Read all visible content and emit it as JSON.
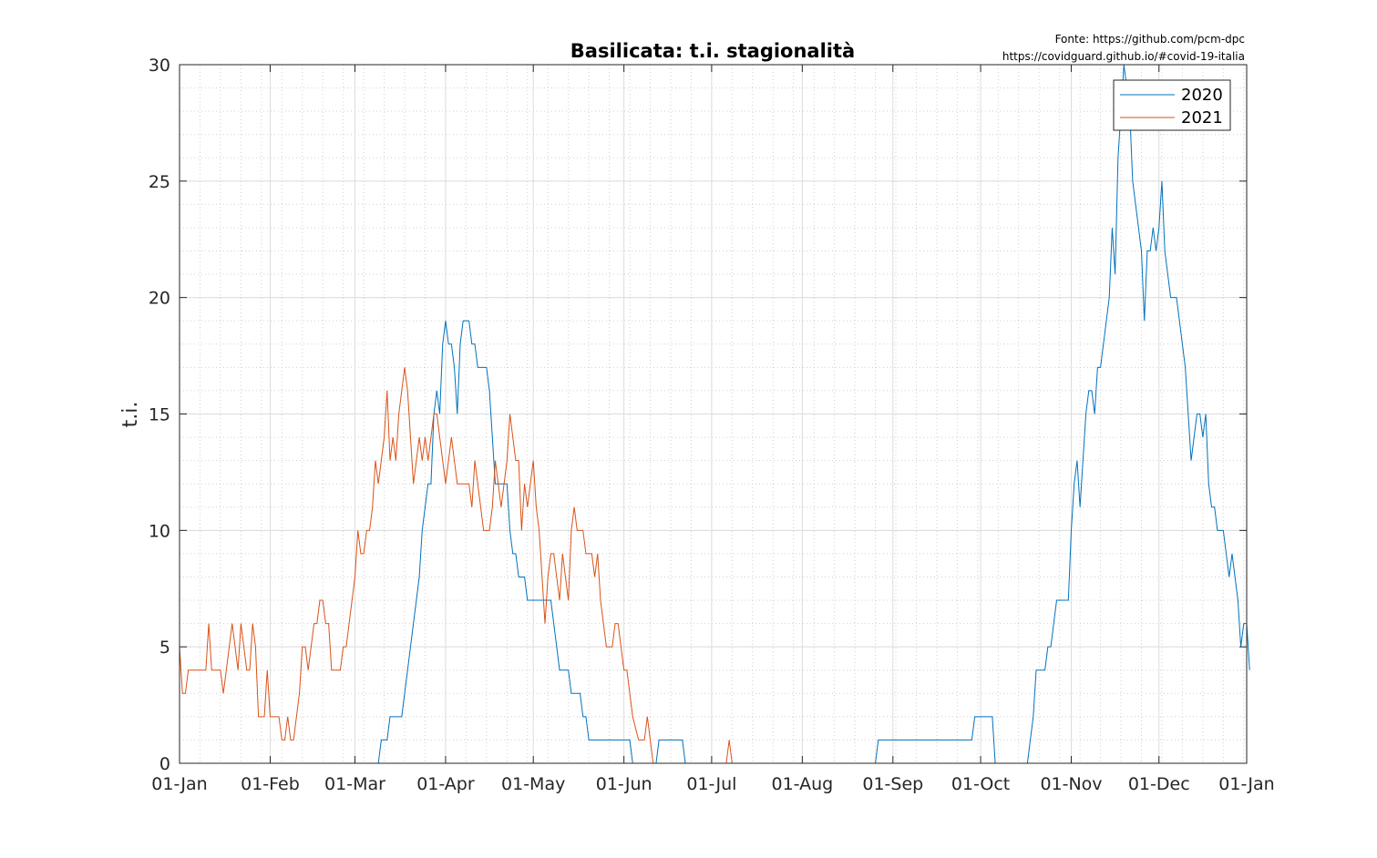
{
  "source": {
    "line1": "Fonte: https://github.com/pcm-dpc",
    "line2": "https://covidguard.github.io/#covid-19-italia"
  },
  "chart_data": {
    "type": "line",
    "title": "Basilicata: t.i. stagionalità",
    "xlabel": "",
    "ylabel": "t.i.",
    "x_axis": "day of year",
    "xlim": [
      1,
      366
    ],
    "ylim": [
      0,
      30
    ],
    "yticks": [
      0,
      5,
      10,
      15,
      20,
      25,
      30
    ],
    "xticks": [
      {
        "day": 1,
        "label": "01-Jan"
      },
      {
        "day": 32,
        "label": "01-Feb"
      },
      {
        "day": 61,
        "label": "01-Mar"
      },
      {
        "day": 92,
        "label": "01-Apr"
      },
      {
        "day": 122,
        "label": "01-May"
      },
      {
        "day": 153,
        "label": "01-Jun"
      },
      {
        "day": 183,
        "label": "01-Jul"
      },
      {
        "day": 214,
        "label": "01-Aug"
      },
      {
        "day": 245,
        "label": "01-Sep"
      },
      {
        "day": 275,
        "label": "01-Oct"
      },
      {
        "day": 306,
        "label": "01-Nov"
      },
      {
        "day": 336,
        "label": "01-Dec"
      },
      {
        "day": 367,
        "label": "01-Jan"
      }
    ],
    "grid": true,
    "minor_grid": true,
    "legend_position": "top-right",
    "series": [
      {
        "name": "2020",
        "color": "#0072bd",
        "points": [
          [
            55,
            0
          ],
          [
            69,
            0
          ],
          [
            70,
            1
          ],
          [
            72,
            1
          ],
          [
            73,
            2
          ],
          [
            77,
            2
          ],
          [
            78,
            3
          ],
          [
            80,
            5
          ],
          [
            81,
            6
          ],
          [
            83,
            8
          ],
          [
            84,
            10
          ],
          [
            85,
            11
          ],
          [
            86,
            12
          ],
          [
            87,
            12
          ],
          [
            88,
            15
          ],
          [
            89,
            16
          ],
          [
            90,
            15
          ],
          [
            91,
            18
          ],
          [
            92,
            19
          ],
          [
            93,
            18
          ],
          [
            94,
            18
          ],
          [
            95,
            17
          ],
          [
            96,
            15
          ],
          [
            97,
            18
          ],
          [
            98,
            19
          ],
          [
            100,
            19
          ],
          [
            101,
            18
          ],
          [
            102,
            18
          ],
          [
            103,
            17
          ],
          [
            106,
            17
          ],
          [
            107,
            16
          ],
          [
            108,
            14
          ],
          [
            109,
            12
          ],
          [
            113,
            12
          ],
          [
            114,
            10
          ],
          [
            115,
            9
          ],
          [
            116,
            9
          ],
          [
            117,
            8
          ],
          [
            119,
            8
          ],
          [
            120,
            7
          ],
          [
            128,
            7
          ],
          [
            129,
            6
          ],
          [
            130,
            5
          ],
          [
            131,
            4
          ],
          [
            134,
            4
          ],
          [
            135,
            3
          ],
          [
            138,
            3
          ],
          [
            139,
            2
          ],
          [
            140,
            2
          ],
          [
            141,
            1
          ],
          [
            155,
            1
          ],
          [
            156,
            0
          ],
          [
            164,
            0
          ],
          [
            165,
            1
          ],
          [
            173,
            1
          ],
          [
            174,
            0
          ],
          [
            239,
            0
          ],
          [
            240,
            1
          ],
          [
            272,
            1
          ],
          [
            273,
            2
          ],
          [
            279,
            2
          ],
          [
            280,
            0
          ],
          [
            291,
            0
          ],
          [
            292,
            1
          ],
          [
            293,
            2
          ],
          [
            294,
            4
          ],
          [
            297,
            4
          ],
          [
            298,
            5
          ],
          [
            299,
            5
          ],
          [
            300,
            6
          ],
          [
            301,
            7
          ],
          [
            305,
            7
          ],
          [
            306,
            10
          ],
          [
            307,
            12
          ],
          [
            308,
            13
          ],
          [
            309,
            11
          ],
          [
            310,
            13
          ],
          [
            311,
            15
          ],
          [
            312,
            16
          ],
          [
            313,
            16
          ],
          [
            314,
            15
          ],
          [
            315,
            17
          ],
          [
            316,
            17
          ],
          [
            317,
            18
          ],
          [
            318,
            19
          ],
          [
            319,
            20
          ],
          [
            320,
            23
          ],
          [
            321,
            21
          ],
          [
            322,
            26
          ],
          [
            323,
            28
          ],
          [
            324,
            30
          ],
          [
            325,
            29
          ],
          [
            326,
            28
          ],
          [
            327,
            25
          ],
          [
            328,
            24
          ],
          [
            329,
            23
          ],
          [
            330,
            22
          ],
          [
            331,
            19
          ],
          [
            332,
            22
          ],
          [
            333,
            22
          ],
          [
            334,
            23
          ],
          [
            335,
            22
          ],
          [
            336,
            23
          ],
          [
            337,
            25
          ],
          [
            338,
            22
          ],
          [
            339,
            21
          ],
          [
            340,
            20
          ],
          [
            342,
            20
          ],
          [
            343,
            19
          ],
          [
            344,
            18
          ],
          [
            345,
            17
          ],
          [
            346,
            15
          ],
          [
            347,
            13
          ],
          [
            348,
            14
          ],
          [
            349,
            15
          ],
          [
            350,
            15
          ],
          [
            351,
            14
          ],
          [
            352,
            15
          ],
          [
            353,
            12
          ],
          [
            354,
            11
          ],
          [
            355,
            11
          ],
          [
            356,
            10
          ],
          [
            358,
            10
          ],
          [
            359,
            9
          ],
          [
            360,
            8
          ],
          [
            361,
            9
          ],
          [
            362,
            8
          ],
          [
            363,
            7
          ],
          [
            364,
            5
          ],
          [
            365,
            6
          ],
          [
            366,
            6
          ],
          [
            367,
            4
          ]
        ]
      },
      {
        "name": "2021",
        "color": "#d95319",
        "points": [
          [
            1,
            5
          ],
          [
            2,
            3
          ],
          [
            3,
            3
          ],
          [
            4,
            4
          ],
          [
            10,
            4
          ],
          [
            11,
            6
          ],
          [
            12,
            4
          ],
          [
            15,
            4
          ],
          [
            16,
            3
          ],
          [
            17,
            4
          ],
          [
            18,
            5
          ],
          [
            19,
            6
          ],
          [
            20,
            5
          ],
          [
            21,
            4
          ],
          [
            22,
            6
          ],
          [
            23,
            5
          ],
          [
            24,
            4
          ],
          [
            25,
            4
          ],
          [
            26,
            6
          ],
          [
            27,
            5
          ],
          [
            28,
            2
          ],
          [
            30,
            2
          ],
          [
            31,
            4
          ],
          [
            32,
            2
          ],
          [
            35,
            2
          ],
          [
            36,
            1
          ],
          [
            37,
            1
          ],
          [
            38,
            2
          ],
          [
            39,
            1
          ],
          [
            40,
            1
          ],
          [
            41,
            2
          ],
          [
            42,
            3
          ],
          [
            43,
            5
          ],
          [
            44,
            5
          ],
          [
            45,
            4
          ],
          [
            46,
            5
          ],
          [
            47,
            6
          ],
          [
            48,
            6
          ],
          [
            49,
            7
          ],
          [
            50,
            7
          ],
          [
            51,
            6
          ],
          [
            52,
            6
          ],
          [
            53,
            4
          ],
          [
            56,
            4
          ],
          [
            57,
            5
          ],
          [
            58,
            5
          ],
          [
            59,
            6
          ],
          [
            60,
            7
          ],
          [
            61,
            8
          ],
          [
            62,
            10
          ],
          [
            63,
            9
          ],
          [
            64,
            9
          ],
          [
            65,
            10
          ],
          [
            66,
            10
          ],
          [
            67,
            11
          ],
          [
            68,
            13
          ],
          [
            69,
            12
          ],
          [
            70,
            13
          ],
          [
            71,
            14
          ],
          [
            72,
            16
          ],
          [
            73,
            13
          ],
          [
            74,
            14
          ],
          [
            75,
            13
          ],
          [
            76,
            15
          ],
          [
            77,
            16
          ],
          [
            78,
            17
          ],
          [
            79,
            16
          ],
          [
            80,
            14
          ],
          [
            81,
            12
          ],
          [
            82,
            13
          ],
          [
            83,
            14
          ],
          [
            84,
            13
          ],
          [
            85,
            14
          ],
          [
            86,
            13
          ],
          [
            87,
            14
          ],
          [
            88,
            15
          ],
          [
            89,
            15
          ],
          [
            90,
            14
          ],
          [
            91,
            13
          ],
          [
            92,
            12
          ],
          [
            93,
            13
          ],
          [
            94,
            14
          ],
          [
            95,
            13
          ],
          [
            96,
            12
          ],
          [
            97,
            12
          ],
          [
            100,
            12
          ],
          [
            101,
            11
          ],
          [
            102,
            13
          ],
          [
            103,
            12
          ],
          [
            104,
            11
          ],
          [
            105,
            10
          ],
          [
            107,
            10
          ],
          [
            108,
            11
          ],
          [
            109,
            13
          ],
          [
            110,
            12
          ],
          [
            111,
            11
          ],
          [
            112,
            12
          ],
          [
            113,
            13
          ],
          [
            114,
            15
          ],
          [
            115,
            14
          ],
          [
            116,
            13
          ],
          [
            117,
            13
          ],
          [
            118,
            10
          ],
          [
            119,
            12
          ],
          [
            120,
            11
          ],
          [
            121,
            12
          ],
          [
            122,
            13
          ],
          [
            123,
            11
          ],
          [
            124,
            10
          ],
          [
            125,
            8
          ],
          [
            126,
            6
          ],
          [
            127,
            8
          ],
          [
            128,
            9
          ],
          [
            129,
            9
          ],
          [
            130,
            8
          ],
          [
            131,
            7
          ],
          [
            132,
            9
          ],
          [
            133,
            8
          ],
          [
            134,
            7
          ],
          [
            135,
            10
          ],
          [
            136,
            11
          ],
          [
            137,
            10
          ],
          [
            139,
            10
          ],
          [
            140,
            9
          ],
          [
            142,
            9
          ],
          [
            143,
            8
          ],
          [
            144,
            9
          ],
          [
            145,
            7
          ],
          [
            146,
            6
          ],
          [
            147,
            5
          ],
          [
            149,
            5
          ],
          [
            150,
            6
          ],
          [
            151,
            6
          ],
          [
            152,
            5
          ],
          [
            153,
            4
          ],
          [
            154,
            4
          ],
          [
            155,
            3
          ],
          [
            156,
            2
          ],
          [
            158,
            1
          ],
          [
            160,
            1
          ],
          [
            161,
            2
          ],
          [
            162,
            1
          ],
          [
            163,
            0
          ],
          [
            188,
            0
          ],
          [
            189,
            1
          ],
          [
            190,
            0
          ]
        ]
      }
    ]
  }
}
